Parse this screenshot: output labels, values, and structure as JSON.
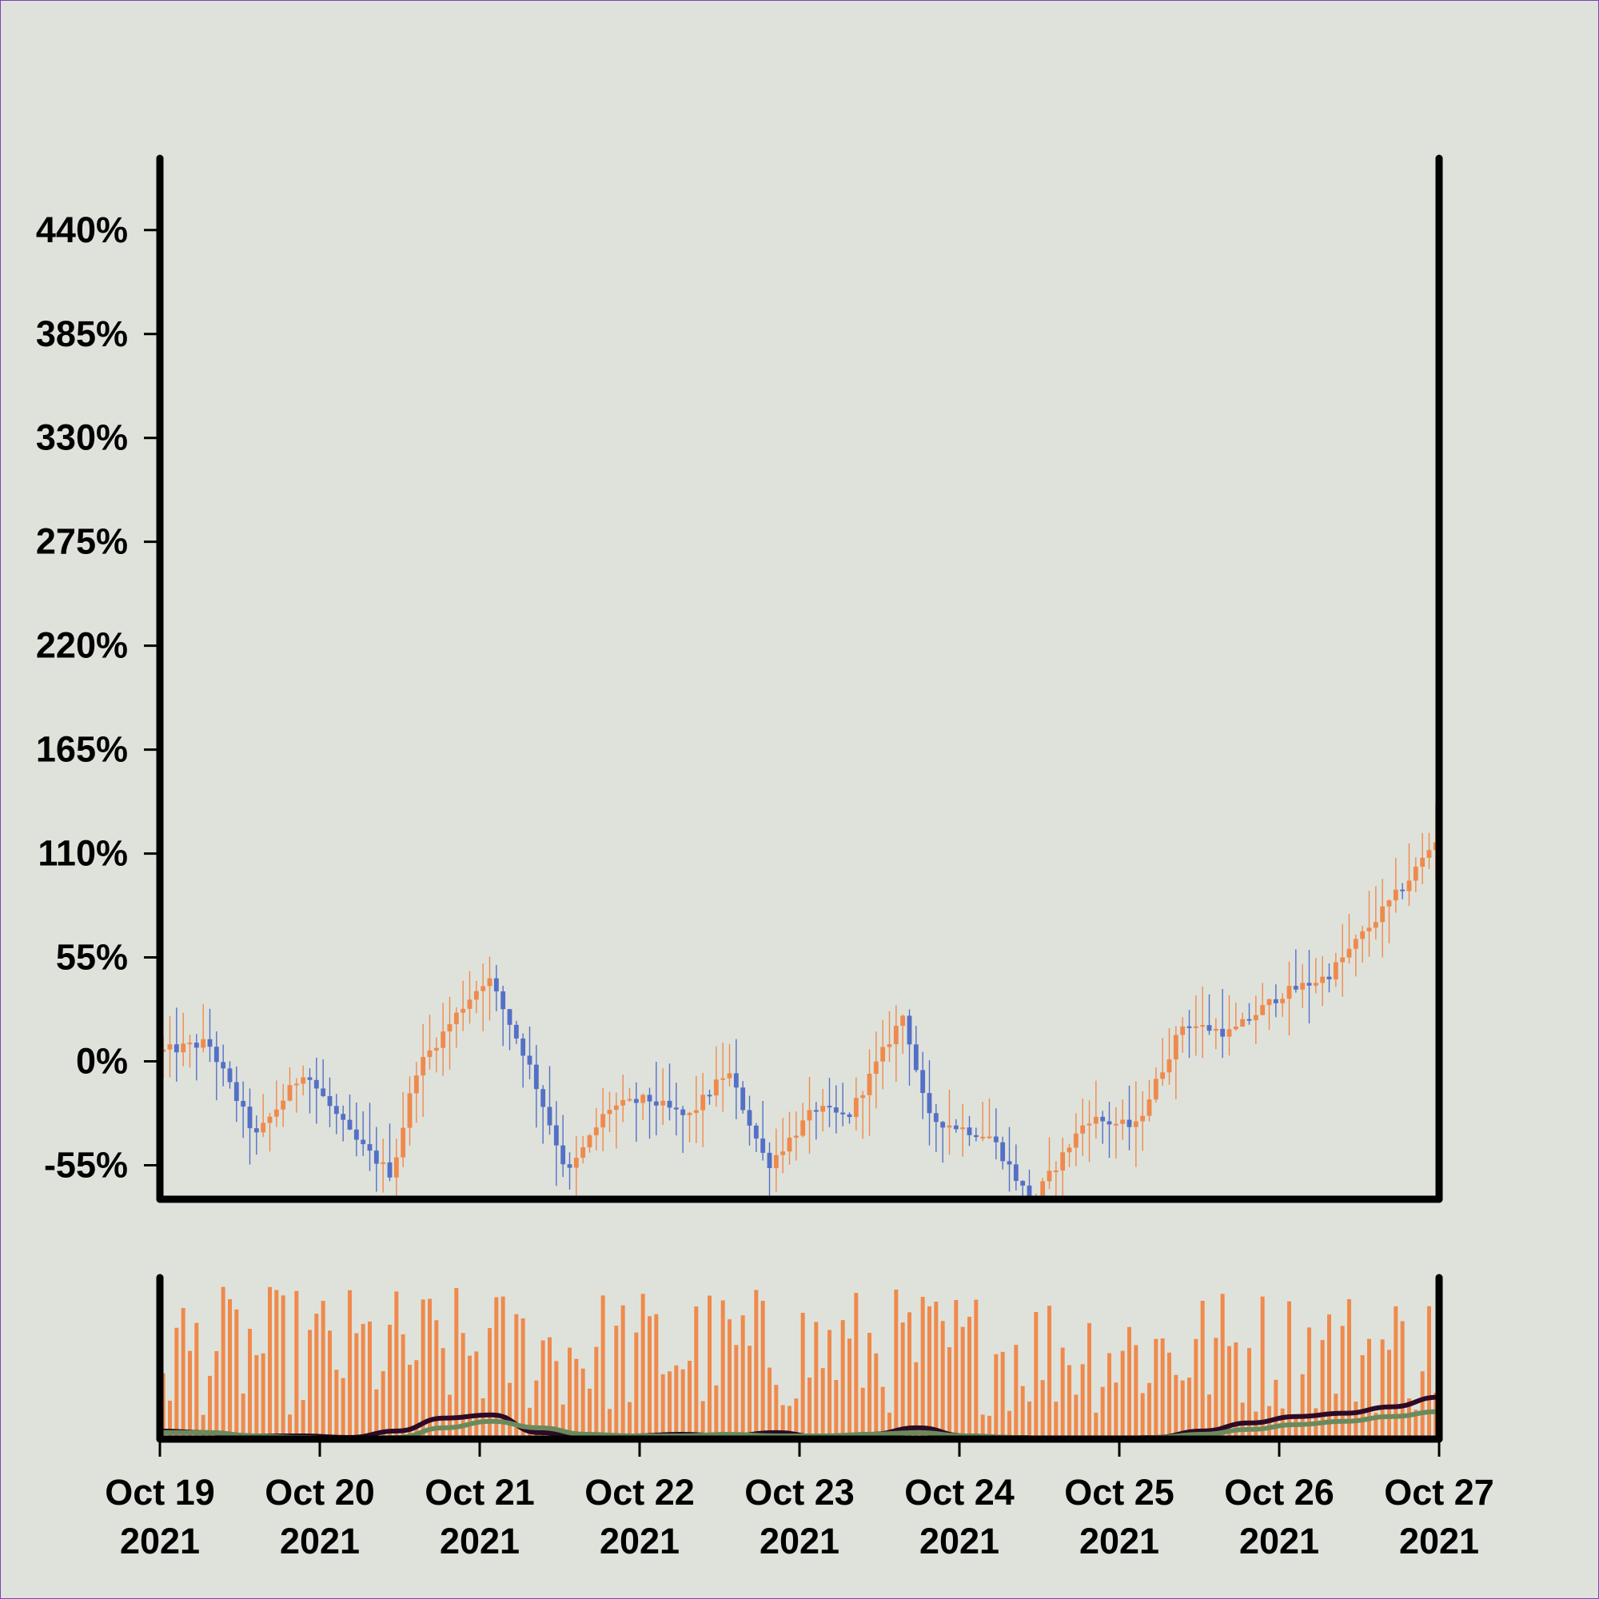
{
  "chart_data": [
    {
      "type": "candlestick",
      "x_ticks": [
        {
          "line1": "Oct 19",
          "line2": "2021"
        },
        {
          "line1": "Oct 20",
          "line2": "2021"
        },
        {
          "line1": "Oct 21",
          "line2": "2021"
        },
        {
          "line1": "Oct 22",
          "line2": "2021"
        },
        {
          "line1": "Oct 23",
          "line2": "2021"
        },
        {
          "line1": "Oct 24",
          "line2": "2021"
        },
        {
          "line1": "Oct 25",
          "line2": "2021"
        },
        {
          "line1": "Oct 26",
          "line2": "2021"
        },
        {
          "line1": "Oct 27",
          "line2": "2021"
        }
      ],
      "y_tick_labels": [
        "440%",
        "385%",
        "330%",
        "275%",
        "220%",
        "165%",
        "110%",
        "55%",
        "0%",
        "-55%"
      ],
      "y_tick_values": [
        440,
        385,
        330,
        275,
        220,
        165,
        110,
        55,
        0,
        -55
      ],
      "ylim": [
        -73,
        478
      ],
      "xlim": [
        "2021-10-19",
        "2021-10-27"
      ],
      "candles_per_day": 24,
      "close_path_percent": [
        [
          0,
          5
        ],
        [
          0.3,
          10
        ],
        [
          0.6,
          -40
        ],
        [
          0.9,
          -5
        ],
        [
          1.2,
          -40
        ],
        [
          1.45,
          -60
        ],
        [
          1.6,
          -5
        ],
        [
          1.9,
          30
        ],
        [
          2.05,
          45
        ],
        [
          2.3,
          0
        ],
        [
          2.55,
          -60
        ],
        [
          2.8,
          -25
        ],
        [
          3.05,
          -20
        ],
        [
          3.3,
          -30
        ],
        [
          3.55,
          -5
        ],
        [
          3.8,
          -55
        ],
        [
          4.1,
          -25
        ],
        [
          4.3,
          -30
        ],
        [
          4.65,
          25
        ],
        [
          4.8,
          -30
        ],
        [
          5.2,
          -40
        ],
        [
          5.45,
          -75
        ],
        [
          5.8,
          -30
        ],
        [
          6.1,
          -35
        ],
        [
          6.4,
          20
        ],
        [
          6.7,
          15
        ],
        [
          7.0,
          35
        ],
        [
          7.3,
          45
        ],
        [
          7.6,
          75
        ],
        [
          7.8,
          95
        ],
        [
          8.0,
          120
        ]
      ],
      "up_color": "#ef8a4c",
      "down_color": "#5470c6",
      "grid": false
    },
    {
      "type": "bar",
      "panel": "volume",
      "bar_color": "#ef8a4c",
      "ylim": [
        0,
        100
      ],
      "moving_averages": [
        {
          "color": "#2d0a26",
          "values": [
            5,
            4,
            2,
            2,
            1,
            5,
            13,
            15,
            4,
            2,
            2,
            3,
            2,
            4,
            1,
            3,
            7,
            2,
            1,
            0,
            0,
            1,
            5,
            10,
            14,
            16,
            20,
            26
          ]
        },
        {
          "color": "#6b8a5c",
          "values": [
            4,
            4,
            2,
            1,
            0,
            1,
            7,
            11,
            7,
            3,
            2,
            2,
            3,
            2,
            2,
            3,
            4,
            2,
            1,
            0,
            0,
            1,
            3,
            6,
            9,
            11,
            14,
            17
          ]
        }
      ]
    }
  ]
}
